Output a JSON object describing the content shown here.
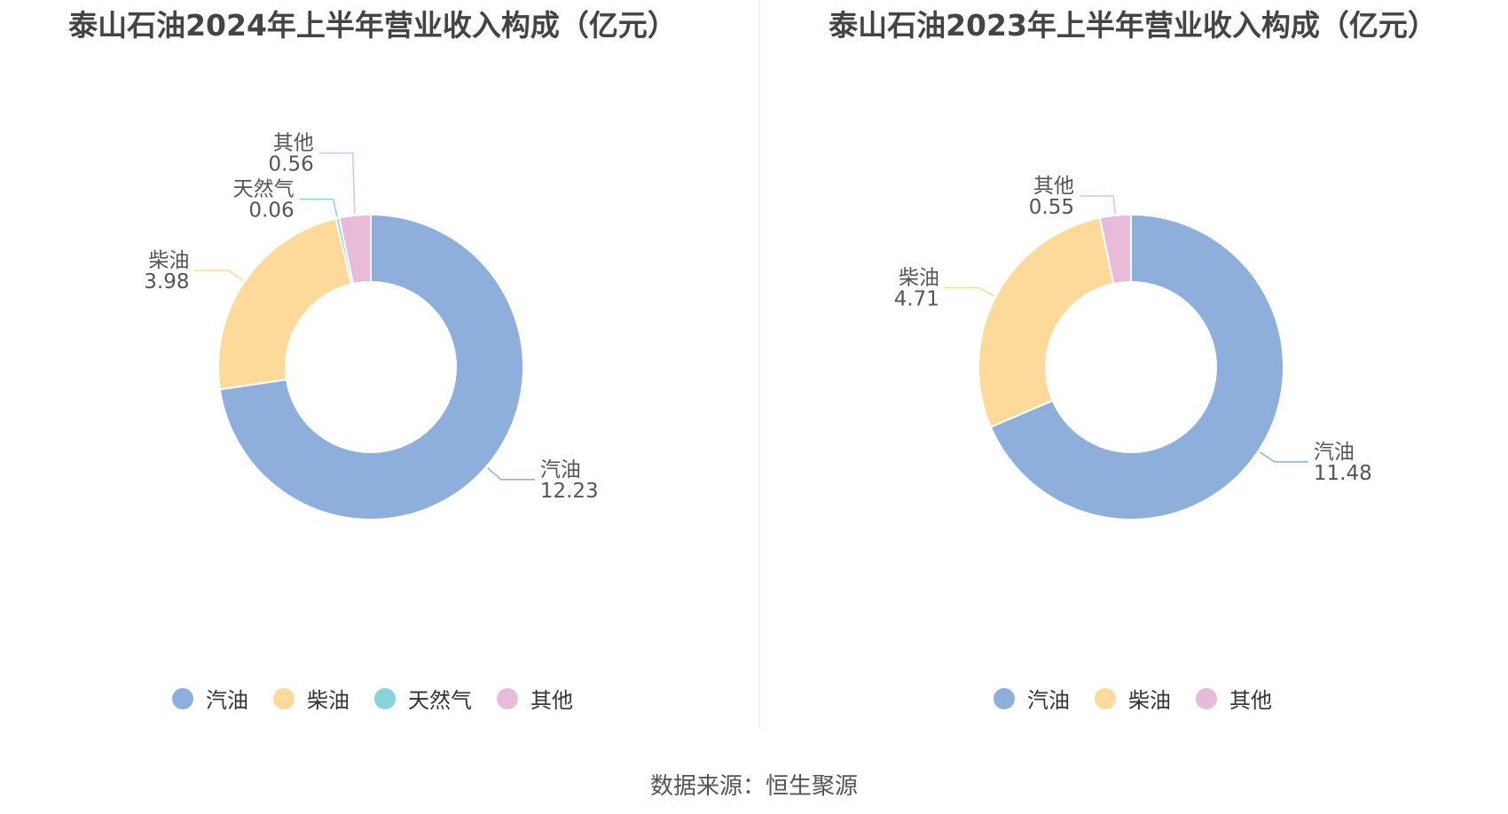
{
  "chart_data": [
    {
      "type": "pie",
      "title": "泰山石油2024年上半年营业收入构成（亿元）",
      "categories": [
        "汽油",
        "柴油",
        "天然气",
        "其他"
      ],
      "values": [
        12.23,
        3.98,
        0.06,
        0.56
      ],
      "colors": [
        "#8eaedb",
        "#fdd99a",
        "#88d4d8",
        "#e8bcd9"
      ],
      "legend": "bottom"
    },
    {
      "type": "pie",
      "title": "泰山石油2023年上半年营业收入构成（亿元）",
      "categories": [
        "汽油",
        "柴油",
        "其他"
      ],
      "values": [
        11.48,
        4.71,
        0.55
      ],
      "colors": [
        "#8eaedb",
        "#fdd99a",
        "#e8bcd9"
      ],
      "legend": "bottom"
    }
  ],
  "footer": {
    "source": "数据来源：恒生聚源"
  }
}
